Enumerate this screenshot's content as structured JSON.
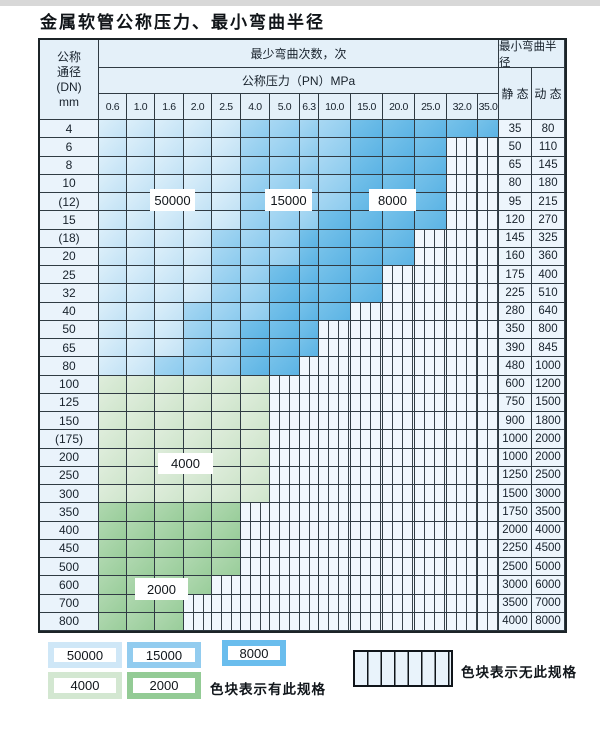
{
  "title": "金属软管公称压力、最小弯曲半径",
  "table": {
    "corner": {
      "line1": "公称",
      "line2": "通径",
      "line3": "(DN)",
      "line4": "mm"
    },
    "bend_header": "最少弯曲次数，次",
    "pressure_header": "公称压力（PN）MPa",
    "radius_header": "最小弯曲半径",
    "static_label": "静 态",
    "dynamic_label": "动 态",
    "pressure_columns": [
      "0.6",
      "1.0",
      "1.6",
      "2.0",
      "2.5",
      "4.0",
      "5.0",
      "6.3",
      "10.0",
      "15.0",
      "20.0",
      "25.0",
      "32.0",
      "35.0"
    ]
  },
  "region_labels": [
    {
      "text": "50000"
    },
    {
      "text": "15000"
    },
    {
      "text": "8000"
    },
    {
      "text": "4000"
    },
    {
      "text": "2000"
    }
  ],
  "legend": {
    "items": [
      {
        "code": "L",
        "label": "50000"
      },
      {
        "code": "M",
        "label": "15000"
      },
      {
        "code": "D",
        "label": "8000"
      },
      {
        "code": "g",
        "label": "4000"
      },
      {
        "code": "G",
        "label": "2000"
      }
    ],
    "has_spec_note": "色块表示有此规格",
    "no_spec_note": "色块表示无此规格"
  },
  "colors": {
    "blue_50000": "#cfe7f7",
    "blue_15000": "#92ccef",
    "blue_8000": "#6abded",
    "green_4000": "#d3e7d1",
    "green_2000": "#93cb95",
    "header_bg": "#e4f0f9",
    "grid_line": "#303b43"
  },
  "chart_data": {
    "type": "table",
    "title": "金属软管公称压力、最小弯曲半径",
    "column_axis": "公称压力（PN）MPa",
    "columns": [
      0.6,
      1.0,
      1.6,
      2.0,
      2.5,
      4.0,
      5.0,
      6.3,
      10.0,
      15.0,
      20.0,
      25.0,
      32.0,
      35.0
    ],
    "cell_codes": {
      "L": "50000次",
      "M": "15000次",
      "D": "8000次",
      "g": "4000次",
      "G": "2000次",
      "h": "无此规格"
    },
    "radius_columns": [
      "静态",
      "动态"
    ],
    "rows": [
      {
        "dn": "4",
        "cells": "LLLLLMMMMDDDDD",
        "static": "35",
        "dynamic": "80"
      },
      {
        "dn": "6",
        "cells": "LLLLLMMMMDDDhh",
        "static": "50",
        "dynamic": "110"
      },
      {
        "dn": "8",
        "cells": "LLLLLMMMMDDDhh",
        "static": "65",
        "dynamic": "145"
      },
      {
        "dn": "10",
        "cells": "LLLLLMMMMDDDhh",
        "static": "80",
        "dynamic": "180"
      },
      {
        "dn": "(12)",
        "cells": "LLLLLMMMMDDDhh",
        "static": "95",
        "dynamic": "215"
      },
      {
        "dn": "15",
        "cells": "LLLLLMMMDDDDhh",
        "static": "120",
        "dynamic": "270"
      },
      {
        "dn": "(18)",
        "cells": "LLLLMMMDDDDhhh",
        "static": "145",
        "dynamic": "325"
      },
      {
        "dn": "20",
        "cells": "LLLLMMMDDDDhhh",
        "static": "160",
        "dynamic": "360"
      },
      {
        "dn": "25",
        "cells": "LLLLMMDDDDhhhh",
        "static": "175",
        "dynamic": "400"
      },
      {
        "dn": "32",
        "cells": "LLLLMMDDDDhhhh",
        "static": "225",
        "dynamic": "510"
      },
      {
        "dn": "40",
        "cells": "LLLMMMDDDhhhhh",
        "static": "280",
        "dynamic": "640"
      },
      {
        "dn": "50",
        "cells": "LLLMMDDDhhhhhh",
        "static": "350",
        "dynamic": "800"
      },
      {
        "dn": "65",
        "cells": "LLLMMDDDhhhhhh",
        "static": "390",
        "dynamic": "845"
      },
      {
        "dn": "80",
        "cells": "LLMMMDDhhhhhhh",
        "static": "480",
        "dynamic": "1000"
      },
      {
        "dn": "100",
        "cells": "gggggghhhhhhhh",
        "static": "600",
        "dynamic": "1200"
      },
      {
        "dn": "125",
        "cells": "gggggghhhhhhhh",
        "static": "750",
        "dynamic": "1500"
      },
      {
        "dn": "150",
        "cells": "gggggghhhhhhhh",
        "static": "900",
        "dynamic": "1800"
      },
      {
        "dn": "(175)",
        "cells": "gggggghhhhhhhh",
        "static": "1000",
        "dynamic": "2000"
      },
      {
        "dn": "200",
        "cells": "gggggghhhhhhhh",
        "static": "1000",
        "dynamic": "2000"
      },
      {
        "dn": "250",
        "cells": "gggggghhhhhhhh",
        "static": "1250",
        "dynamic": "2500"
      },
      {
        "dn": "300",
        "cells": "gggggghhhhhhhh",
        "static": "1500",
        "dynamic": "3000"
      },
      {
        "dn": "350",
        "cells": "GGGGGhhhhhhhhh",
        "static": "1750",
        "dynamic": "3500"
      },
      {
        "dn": "400",
        "cells": "GGGGGhhhhhhhhh",
        "static": "2000",
        "dynamic": "4000"
      },
      {
        "dn": "450",
        "cells": "GGGGGhhhhhhhhh",
        "static": "2250",
        "dynamic": "4500"
      },
      {
        "dn": "500",
        "cells": "GGGGGhhhhhhhhh",
        "static": "2500",
        "dynamic": "5000"
      },
      {
        "dn": "600",
        "cells": "GGGGhhhhhhhhhh",
        "static": "3000",
        "dynamic": "6000"
      },
      {
        "dn": "700",
        "cells": "GGGhhhhhhhhhhh",
        "static": "3500",
        "dynamic": "7000"
      },
      {
        "dn": "800",
        "cells": "GGGhhhhhhhhhhh",
        "static": "4000",
        "dynamic": "8000"
      }
    ]
  }
}
